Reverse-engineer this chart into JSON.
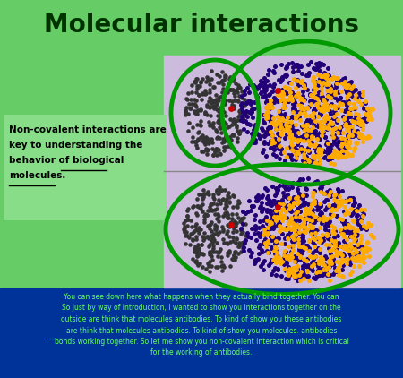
{
  "title": "Molecular interactions",
  "title_color": "#003300",
  "title_fontsize": 20,
  "slide_bg": "#66cc66",
  "bottom_bg": "#003399",
  "image_panel_bg": "#ccbbdd",
  "circle_color": "#009900",
  "circle_lw": 3.5,
  "bottom_text_line1": "You can see down here what happens when they actually bind together. You can",
  "bottom_text_line2": "So just by way of introduction, I wanted to show you interactions together on the",
  "bottom_text_line3": "outside are think that molecules antibodies. To kind of show you these antibodies",
  "bottom_text_line4": "are think that molecules antibodies. To kind of show you molecules. antibodies",
  "bottom_text_line5": "bonds working together. So let me show you non-covalent interaction which is critical",
  "bottom_text_line6": "for the working of antibodies.",
  "left_text1": "Non-covalent interactions are",
  "left_text2": "key to understanding the",
  "left_text3": "behavior of biological",
  "left_text4": "molecules.",
  "underline_word": "biological",
  "underline_word2": "molecules.",
  "dark_cluster_color": "#333333",
  "blue_cluster_color": "#220077",
  "orange_cluster_color": "#ffaa00",
  "red_dot_color": "#cc0000"
}
